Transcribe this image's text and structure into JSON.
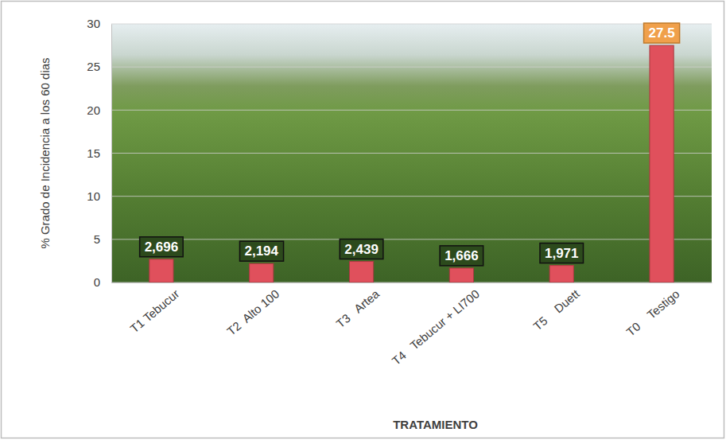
{
  "chart_data": {
    "type": "bar",
    "x_label": "TRATAMIENTO",
    "y_label": "% Grado de Incidencia a los 60 dias",
    "categories": [
      "T1 Tebucur",
      "T2  Alto 100",
      "T3   Artea",
      "T4   Tebucur + LI700",
      "T5    Duett",
      "T0    Testigo"
    ],
    "values": [
      2.696,
      2.194,
      2.439,
      1.666,
      1.971,
      27.5
    ],
    "value_labels": [
      "2,696",
      "2,194",
      "2,439",
      "1,666",
      "1,971",
      "27.5"
    ],
    "data_labels": true,
    "color": "#e0505c",
    "ylim": [
      0,
      30
    ],
    "yticks": [
      0,
      5,
      10,
      15,
      20,
      25,
      30
    ],
    "grid": true
  }
}
